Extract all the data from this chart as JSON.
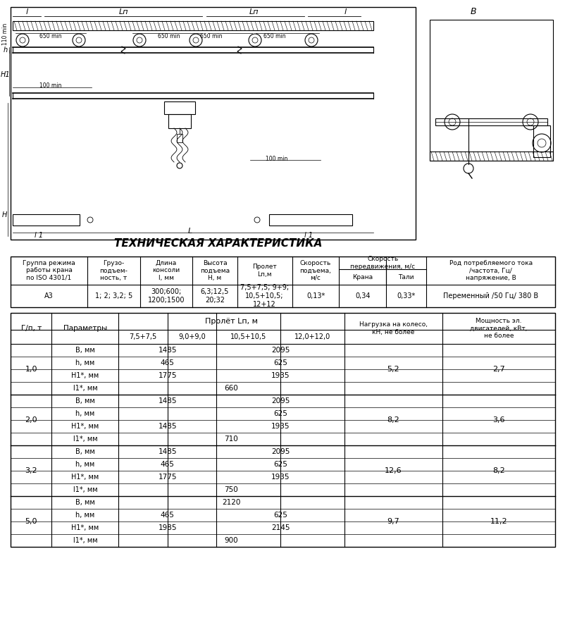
{
  "title": "ТЕХНИЧЕСКАЯ ХАРАКТЕРИСТИКА",
  "bg_color": "#ffffff",
  "text_color": "#000000",
  "table1_header_texts": [
    "Группа режима\nработы крана\nпо ISO 4301/1",
    "Грузо-\nподъем-\nность, т",
    "Длина\nконсоли\nl, мм",
    "Высота\nподъема\nН, м",
    "Пролет\nLп,м",
    "Скорость\nподъема,\nм/с",
    "Скорость\nпередвижения, м/с",
    "Крана",
    "Тали",
    "Род потребляемого тока\n/частота, Гц/\nнапряжение, В"
  ],
  "table1_row": [
    "А3",
    "1; 2; 3,2; 5",
    "300;600;\n1200;1500",
    "6,3;12,5\n20;32",
    "7,5+7,5; 9+9;\n10,5+10,5;\n12+12",
    "0,13*",
    "0,34",
    "0,33*",
    "Переменный /50 Гц/ 380 В"
  ],
  "table2_span_header": "Пролёт Lп, м",
  "table2_sub_headers": [
    "7,5+7,5",
    "9,0+9,0",
    "10,5+10,5",
    "12,0+12,0"
  ],
  "group_labels": [
    "1,0",
    "2,0",
    "3,2",
    "5,0"
  ],
  "param_labels": [
    "В, мм",
    "h, мм",
    "Н1*, мм",
    "l1*, мм"
  ],
  "groups_data": [
    {
      "rows": [
        [
          "1485",
          "",
          "2095",
          ""
        ],
        [
          "465",
          "",
          "625",
          ""
        ],
        [
          "1775",
          "",
          "1935",
          ""
        ],
        [
          "",
          "660",
          "",
          ""
        ]
      ],
      "load": "5,2",
      "power": "2,7"
    },
    {
      "rows": [
        [
          "1485",
          "",
          "2095",
          ""
        ],
        [
          "",
          "",
          "625",
          ""
        ],
        [
          "1485",
          "",
          "1935",
          ""
        ],
        [
          "",
          "710",
          "",
          ""
        ]
      ],
      "load": "8,2",
      "power": "3,6"
    },
    {
      "rows": [
        [
          "1485",
          "",
          "2095",
          ""
        ],
        [
          "465",
          "",
          "625",
          ""
        ],
        [
          "1775",
          "",
          "1935",
          ""
        ],
        [
          "",
          "750",
          "",
          ""
        ]
      ],
      "load": "12,6",
      "power": "8,2"
    },
    {
      "rows": [
        [
          "",
          "2120",
          "",
          ""
        ],
        [
          "465",
          "",
          "625",
          ""
        ],
        [
          "1985",
          "",
          "2145",
          ""
        ],
        [
          "",
          "900",
          "",
          ""
        ]
      ],
      "load": "9,7",
      "power": "11,2"
    }
  ]
}
